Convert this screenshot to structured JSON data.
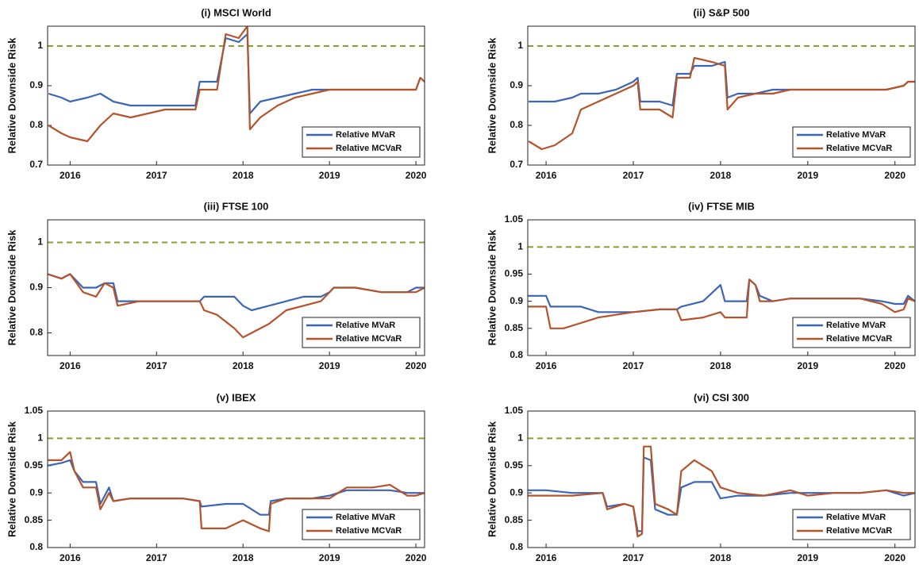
{
  "chart_data": [
    {
      "type": "line",
      "title": "(i) MSCI World",
      "ylabel": "Relative Downside Risk",
      "legend": "lower right",
      "xlim": [
        2015.74,
        2020.1
      ],
      "xticks": [
        2016,
        2017,
        2018,
        2019,
        2020
      ],
      "ylim": [
        0.7,
        1.05
      ],
      "yticks": [
        0.7,
        0.8,
        0.9,
        1
      ],
      "reference_line": {
        "value": 1,
        "color": "#8c9b32"
      },
      "x": [
        2015.75,
        2015.9,
        2016.0,
        2016.2,
        2016.35,
        2016.5,
        2016.7,
        2016.9,
        2017.1,
        2017.3,
        2017.45,
        2017.5,
        2017.7,
        2017.8,
        2017.95,
        2018.05,
        2018.08,
        2018.2,
        2018.4,
        2018.6,
        2018.8,
        2019.0,
        2019.2,
        2019.4,
        2019.6,
        2019.8,
        2020.0,
        2020.05,
        2020.1
      ],
      "series": [
        {
          "name": "Relative MVaR",
          "color": "#3b66b5",
          "values": [
            0.88,
            0.87,
            0.86,
            0.87,
            0.88,
            0.86,
            0.85,
            0.85,
            0.85,
            0.85,
            0.85,
            0.91,
            0.91,
            1.02,
            1.01,
            1.03,
            0.83,
            0.86,
            0.87,
            0.88,
            0.89,
            0.89,
            0.89,
            0.89,
            0.89,
            0.89,
            0.89,
            0.92,
            0.91
          ]
        },
        {
          "name": "Relative MCVaR",
          "color": "#b5532b",
          "values": [
            0.8,
            0.78,
            0.77,
            0.76,
            0.8,
            0.83,
            0.82,
            0.83,
            0.84,
            0.84,
            0.84,
            0.89,
            0.89,
            1.03,
            1.02,
            1.05,
            0.79,
            0.82,
            0.85,
            0.87,
            0.88,
            0.89,
            0.89,
            0.89,
            0.89,
            0.89,
            0.89,
            0.92,
            0.91
          ]
        }
      ]
    },
    {
      "type": "line",
      "title": "(ii) S&P 500",
      "ylabel": "Relative Downside Risk",
      "legend": "lower right",
      "xlim": [
        2015.79,
        2020.23
      ],
      "xticks": [
        2016,
        2017,
        2018,
        2019,
        2020
      ],
      "ylim": [
        0.7,
        1.05
      ],
      "yticks": [
        0.7,
        0.8,
        0.9,
        1
      ],
      "reference_line": {
        "value": 1,
        "color": "#8c9b32"
      },
      "x": [
        2015.8,
        2015.95,
        2016.1,
        2016.3,
        2016.4,
        2016.6,
        2016.8,
        2017.0,
        2017.05,
        2017.08,
        2017.3,
        2017.45,
        2017.5,
        2017.65,
        2017.7,
        2017.9,
        2018.05,
        2018.08,
        2018.2,
        2018.4,
        2018.6,
        2018.8,
        2019.0,
        2019.3,
        2019.6,
        2019.9,
        2020.1,
        2020.15,
        2020.23
      ],
      "series": [
        {
          "name": "Relative MVaR",
          "color": "#3b66b5",
          "values": [
            0.86,
            0.86,
            0.86,
            0.87,
            0.88,
            0.88,
            0.89,
            0.91,
            0.92,
            0.86,
            0.86,
            0.85,
            0.93,
            0.93,
            0.95,
            0.95,
            0.96,
            0.87,
            0.88,
            0.88,
            0.89,
            0.89,
            0.89,
            0.89,
            0.89,
            0.89,
            0.9,
            0.91,
            0.91
          ]
        },
        {
          "name": "Relative MCVaR",
          "color": "#b5532b",
          "values": [
            0.76,
            0.74,
            0.75,
            0.78,
            0.84,
            0.86,
            0.88,
            0.9,
            0.91,
            0.84,
            0.84,
            0.82,
            0.92,
            0.92,
            0.97,
            0.96,
            0.95,
            0.84,
            0.87,
            0.88,
            0.88,
            0.89,
            0.89,
            0.89,
            0.89,
            0.89,
            0.9,
            0.91,
            0.91
          ]
        }
      ]
    },
    {
      "type": "line",
      "title": "(iii) FTSE 100",
      "ylabel": "Relative Downside Risk",
      "legend": "lower right",
      "xlim": [
        2015.74,
        2020.1
      ],
      "xticks": [
        2016,
        2017,
        2018,
        2019,
        2020
      ],
      "ylim": [
        0.75,
        1.05
      ],
      "yticks": [
        0.8,
        0.9,
        1
      ],
      "reference_line": {
        "value": 1,
        "color": "#8c9b32"
      },
      "x": [
        2015.74,
        2015.9,
        2016.0,
        2016.15,
        2016.3,
        2016.4,
        2016.5,
        2016.55,
        2016.8,
        2017.0,
        2017.3,
        2017.5,
        2017.55,
        2017.7,
        2017.9,
        2018.0,
        2018.1,
        2018.3,
        2018.5,
        2018.7,
        2018.9,
        2019.0,
        2019.05,
        2019.3,
        2019.6,
        2019.9,
        2020.0,
        2020.1
      ],
      "series": [
        {
          "name": "Relative MVaR",
          "color": "#3b66b5",
          "values": [
            0.93,
            0.92,
            0.93,
            0.9,
            0.9,
            0.91,
            0.91,
            0.87,
            0.87,
            0.87,
            0.87,
            0.87,
            0.88,
            0.88,
            0.88,
            0.86,
            0.85,
            0.86,
            0.87,
            0.88,
            0.88,
            0.89,
            0.9,
            0.9,
            0.89,
            0.89,
            0.9,
            0.9
          ]
        },
        {
          "name": "Relative MCVaR",
          "color": "#b5532b",
          "values": [
            0.93,
            0.92,
            0.93,
            0.89,
            0.88,
            0.91,
            0.9,
            0.86,
            0.87,
            0.87,
            0.87,
            0.87,
            0.85,
            0.84,
            0.81,
            0.79,
            0.8,
            0.82,
            0.85,
            0.86,
            0.87,
            0.89,
            0.9,
            0.9,
            0.89,
            0.89,
            0.89,
            0.9
          ]
        }
      ]
    },
    {
      "type": "line",
      "title": "(iv) FTSE MIB",
      "ylabel": "Relative Downside Risk",
      "legend": "lower right",
      "xlim": [
        2015.79,
        2020.23
      ],
      "xticks": [
        2016,
        2017,
        2018,
        2019,
        2020
      ],
      "ylim": [
        0.8,
        1.05
      ],
      "yticks": [
        0.8,
        0.85,
        0.9,
        0.95,
        1,
        1.05
      ],
      "reference_line": {
        "value": 1,
        "color": "#8c9b32"
      },
      "x": [
        2015.79,
        2016.0,
        2016.05,
        2016.2,
        2016.4,
        2016.6,
        2016.8,
        2017.0,
        2017.3,
        2017.5,
        2017.55,
        2017.8,
        2018.0,
        2018.05,
        2018.1,
        2018.3,
        2018.33,
        2018.4,
        2018.45,
        2018.6,
        2018.8,
        2019.0,
        2019.3,
        2019.6,
        2019.85,
        2020.0,
        2020.1,
        2020.15,
        2020.23
      ],
      "series": [
        {
          "name": "Relative MVaR",
          "color": "#3b66b5",
          "values": [
            0.91,
            0.91,
            0.89,
            0.89,
            0.89,
            0.88,
            0.88,
            0.88,
            0.885,
            0.885,
            0.89,
            0.9,
            0.93,
            0.9,
            0.9,
            0.9,
            0.94,
            0.93,
            0.91,
            0.9,
            0.905,
            0.905,
            0.905,
            0.905,
            0.9,
            0.895,
            0.895,
            0.91,
            0.9
          ]
        },
        {
          "name": "Relative MCVaR",
          "color": "#b5532b",
          "values": [
            0.89,
            0.89,
            0.85,
            0.85,
            0.86,
            0.87,
            0.875,
            0.88,
            0.885,
            0.885,
            0.865,
            0.87,
            0.88,
            0.87,
            0.87,
            0.87,
            0.94,
            0.93,
            0.9,
            0.9,
            0.905,
            0.905,
            0.905,
            0.905,
            0.895,
            0.88,
            0.885,
            0.905,
            0.9
          ]
        }
      ]
    },
    {
      "type": "line",
      "title": "(v) IBEX",
      "ylabel": "Relative Downside Risk",
      "legend": "lower right",
      "xlim": [
        2015.74,
        2020.1
      ],
      "xticks": [
        2016,
        2017,
        2018,
        2019,
        2020
      ],
      "ylim": [
        0.8,
        1.05
      ],
      "yticks": [
        0.8,
        0.85,
        0.9,
        0.95,
        1,
        1.05
      ],
      "reference_line": {
        "value": 1,
        "color": "#8c9b32"
      },
      "x": [
        2015.74,
        2015.9,
        2016.0,
        2016.05,
        2016.15,
        2016.3,
        2016.35,
        2016.45,
        2016.5,
        2016.7,
        2017.0,
        2017.3,
        2017.5,
        2017.52,
        2017.8,
        2018.0,
        2018.2,
        2018.3,
        2018.32,
        2018.5,
        2018.8,
        2019.0,
        2019.2,
        2019.5,
        2019.7,
        2019.9,
        2020.0,
        2020.1
      ],
      "series": [
        {
          "name": "Relative MVaR",
          "color": "#3b66b5",
          "values": [
            0.95,
            0.955,
            0.96,
            0.94,
            0.92,
            0.92,
            0.88,
            0.91,
            0.885,
            0.89,
            0.89,
            0.89,
            0.885,
            0.875,
            0.88,
            0.88,
            0.86,
            0.86,
            0.885,
            0.89,
            0.89,
            0.895,
            0.905,
            0.905,
            0.905,
            0.9,
            0.9,
            0.9
          ]
        },
        {
          "name": "Relative MCVaR",
          "color": "#b5532b",
          "values": [
            0.96,
            0.96,
            0.975,
            0.94,
            0.91,
            0.91,
            0.87,
            0.9,
            0.885,
            0.89,
            0.89,
            0.89,
            0.885,
            0.835,
            0.835,
            0.85,
            0.835,
            0.83,
            0.88,
            0.89,
            0.89,
            0.89,
            0.91,
            0.91,
            0.915,
            0.895,
            0.895,
            0.9
          ]
        }
      ]
    },
    {
      "type": "line",
      "title": "(vi) CSI 300",
      "ylabel": "Relative Downside Risk",
      "legend": "lower right",
      "xlim": [
        2015.79,
        2020.23
      ],
      "xticks": [
        2016,
        2017,
        2018,
        2019,
        2020
      ],
      "ylim": [
        0.8,
        1.05
      ],
      "yticks": [
        0.8,
        0.85,
        0.9,
        0.95,
        1,
        1.05
      ],
      "reference_line": {
        "value": 1,
        "color": "#8c9b32"
      },
      "x": [
        2015.79,
        2016.0,
        2016.3,
        2016.65,
        2016.7,
        2016.9,
        2017.0,
        2017.05,
        2017.1,
        2017.12,
        2017.2,
        2017.25,
        2017.4,
        2017.5,
        2017.55,
        2017.7,
        2017.9,
        2018.0,
        2018.2,
        2018.5,
        2018.8,
        2019.0,
        2019.3,
        2019.6,
        2019.9,
        2020.1,
        2020.23
      ],
      "series": [
        {
          "name": "Relative MVaR",
          "color": "#3b66b5",
          "values": [
            0.905,
            0.905,
            0.9,
            0.9,
            0.875,
            0.88,
            0.875,
            0.83,
            0.83,
            0.965,
            0.96,
            0.87,
            0.86,
            0.86,
            0.91,
            0.92,
            0.92,
            0.89,
            0.895,
            0.895,
            0.9,
            0.9,
            0.9,
            0.9,
            0.905,
            0.895,
            0.9
          ]
        },
        {
          "name": "Relative MCVaR",
          "color": "#b5532b",
          "values": [
            0.895,
            0.895,
            0.895,
            0.9,
            0.87,
            0.88,
            0.875,
            0.82,
            0.825,
            0.985,
            0.985,
            0.88,
            0.87,
            0.86,
            0.94,
            0.96,
            0.94,
            0.91,
            0.9,
            0.895,
            0.905,
            0.895,
            0.9,
            0.9,
            0.905,
            0.9,
            0.9
          ]
        }
      ]
    }
  ]
}
